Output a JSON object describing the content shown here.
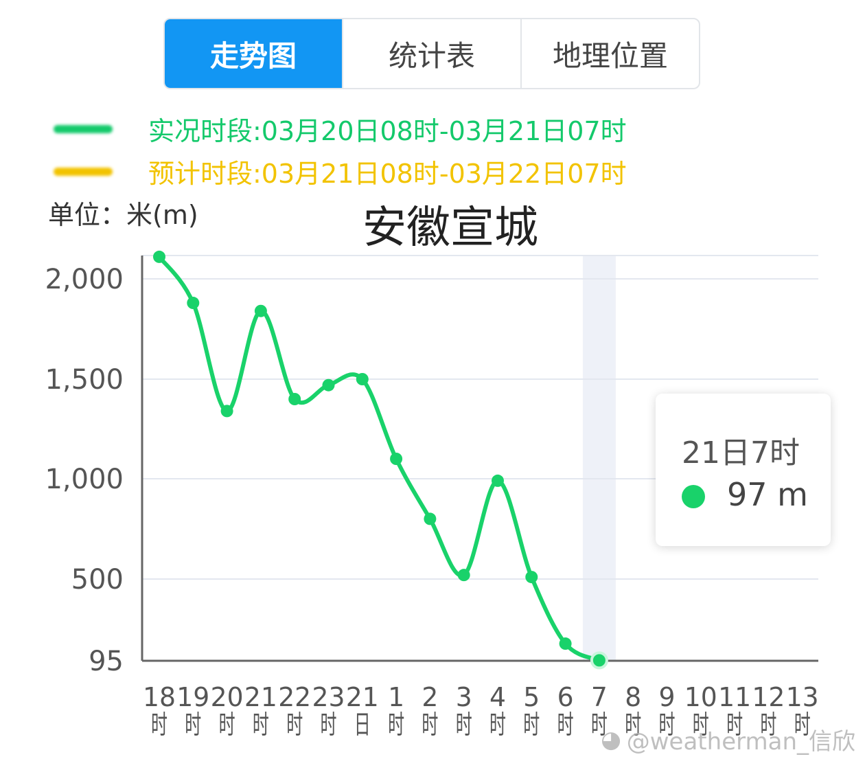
{
  "tabs": [
    {
      "label": "走势图",
      "active": true
    },
    {
      "label": "统计表",
      "active": false
    },
    {
      "label": "地理位置",
      "active": false
    }
  ],
  "legend": [
    {
      "label": "实况时段:03月20日08时-03月21日07时",
      "color": "#14c96b"
    },
    {
      "label": "预计时段:03月21日08时-03月22日07时",
      "color": "#f2c300"
    }
  ],
  "unit_label": "单位：米(m)",
  "tooltip": {
    "title": "21日7时",
    "value": "97 m",
    "color": "#19d26a"
  },
  "watermark": "@weatherman_信欣",
  "chart_data": {
    "type": "line",
    "title": "安徽宣城",
    "ylabel": "单位：米(m)",
    "y_ticks": [
      {
        "value": 95,
        "label": "95"
      },
      {
        "value": 500,
        "label": "500"
      },
      {
        "value": 1000,
        "label": "1,000"
      },
      {
        "value": 1500,
        "label": "1,500"
      },
      {
        "value": 2000,
        "label": "2,000"
      }
    ],
    "ylim": [
      0,
      2100
    ],
    "x_categories": [
      "18\n时",
      "19\n时",
      "20\n时",
      "21\n时",
      "22\n时",
      "23\n时",
      "21\n日",
      "1\n时",
      "2\n时",
      "3\n时",
      "4\n时",
      "5\n时",
      "6\n时",
      "7\n时",
      "8\n时",
      "9\n时",
      "10\n时",
      "11\n时",
      "12\n时",
      "13\n时"
    ],
    "series": [
      {
        "color": "#19d26a",
        "values": [
          2110,
          1880,
          1340,
          1840,
          1400,
          1470,
          1500,
          1100,
          800,
          520,
          990,
          510,
          180,
          97
        ]
      }
    ],
    "highlight_category": "7\n时",
    "grid": true
  }
}
